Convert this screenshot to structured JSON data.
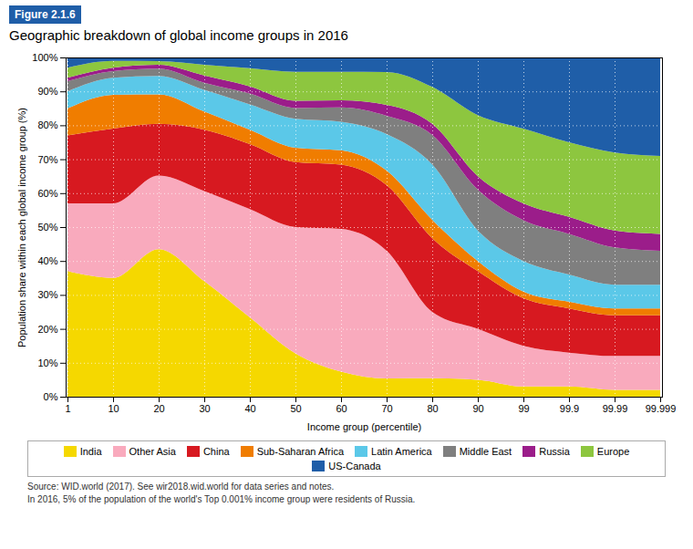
{
  "chart_data": {
    "type": "area",
    "stacked": true,
    "title": "Geographic breakdown of global income groups in 2016",
    "annotations": [
      "Figure 2.1.6",
      "Source: WID.world (2017). See wir2018.wid.world for data series and notes.",
      "In 2016, 5% of the population of the world's Top 0.001% income group were residents of Russia."
    ],
    "x_label": "Income group (percentile)",
    "y_label": "Population share within each global income group (%)",
    "categories": [
      "1",
      "10",
      "20",
      "30",
      "40",
      "50",
      "60",
      "70",
      "80",
      "90",
      "99",
      "99.9",
      "99.99",
      "99.999"
    ],
    "series": [
      {
        "name": "India",
        "color": "#F5D800",
        "values": [
          37,
          35,
          43.47826086956522,
          34.04255319148936,
          23.404255319148938,
          12.76595744680851,
          7.368421052631579,
          5.376344086021505,
          5.434782608695652,
          5,
          3,
          3,
          2,
          2
        ]
      },
      {
        "name": "Other Asia",
        "color": "#F9AABD",
        "values": [
          20,
          22,
          21.73913043478261,
          26.595744680851062,
          31.914893617021278,
          37.234042553191486,
          42.10526315789473,
          37.634408602150536,
          19.565217391304348,
          15,
          12,
          10,
          10,
          10
        ]
      },
      {
        "name": "China",
        "color": "#D71920",
        "values": [
          20,
          22,
          15.217391304347826,
          18.085106382978722,
          19.148936170212767,
          19.148936170212767,
          18.947368421052634,
          19.35483870967742,
          21.73913043478261,
          17,
          14,
          13,
          12,
          12
        ]
      },
      {
        "name": "Sub-Saharan Africa",
        "color": "#F07D00",
        "values": [
          8,
          10,
          8.695652173913043,
          5.319148936170213,
          4.25531914893617,
          4.25531914893617,
          4.2105263157894735,
          4.301075268817205,
          5.434782608695652,
          3,
          2,
          2,
          2,
          2
        ]
      },
      {
        "name": "Latin America",
        "color": "#5BC8E8",
        "values": [
          5,
          5,
          5.434782608695652,
          6.382978723404255,
          7.446808510638298,
          8.51063829787234,
          8.421052631578947,
          10.75268817204301,
          16.304347826086957,
          9,
          9,
          8,
          7,
          7
        ]
      },
      {
        "name": "Middle East",
        "color": "#7F7F7F",
        "values": [
          3,
          2,
          2.1739130434782608,
          2.127659574468085,
          3.1914893617021276,
          3.1914893617021276,
          4.2105263157894735,
          5.376344086021505,
          8.695652173913043,
          12,
          12,
          12,
          11,
          10
        ]
      },
      {
        "name": "Russia",
        "color": "#9B1D8A",
        "values": [
          1,
          1,
          1.0869565217391304,
          2.127659574468085,
          2.127659574468085,
          2.127659574468085,
          2.1052631578947367,
          3.225806451612903,
          3.260869565217391,
          4,
          5,
          5,
          5,
          5
        ]
      },
      {
        "name": "Europe",
        "color": "#8DC63F",
        "values": [
          3,
          2,
          1.0869565217391304,
          3.1914893617021276,
          5.319148936170213,
          8.51063829787234,
          8.421052631578947,
          9.67741935483871,
          10.869565217391305,
          18,
          22,
          22,
          23,
          23
        ]
      },
      {
        "name": "US-Canada",
        "color": "#1F5EA8",
        "values": [
          3,
          1,
          1.0869565217391304,
          2.127659574468085,
          3.1914893617021276,
          4.25531914893617,
          4.2105263157894735,
          4.301075268817205,
          8.695652173913043,
          17,
          21,
          25,
          28,
          29
        ]
      }
    ],
    "ylim": [
      0,
      100
    ],
    "yticks": [
      {
        "value": 0,
        "label": "0%"
      },
      {
        "value": 10,
        "label": "10%"
      },
      {
        "value": 20,
        "label": "20%"
      },
      {
        "value": 30,
        "label": "30%"
      },
      {
        "value": 40,
        "label": "40%"
      },
      {
        "value": 50,
        "label": "50%"
      },
      {
        "value": 60,
        "label": "60%"
      },
      {
        "value": 70,
        "label": "70%"
      },
      {
        "value": 80,
        "label": "80%"
      },
      {
        "value": 90,
        "label": "90%"
      },
      {
        "value": 100,
        "label": "100%"
      }
    ],
    "grid": true,
    "legend": "bottom"
  }
}
